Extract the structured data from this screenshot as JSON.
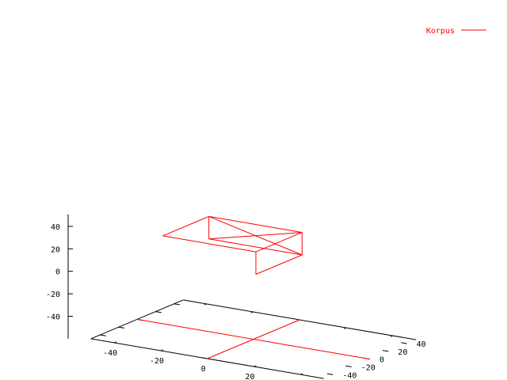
{
  "chart_data": {
    "type": "3d-wireframe",
    "series": [
      {
        "name": "Korpus",
        "color": "#ff0000",
        "box": {
          "x": [
            -35,
            5
          ],
          "y": [
            -10,
            40
          ],
          "z": [
            3,
            23
          ]
        }
      }
    ],
    "xlim": [
      -50,
      50
    ],
    "ylim": [
      -50,
      50
    ],
    "zlim": [
      -60,
      50
    ],
    "x_ticks": [
      "-40",
      "-20",
      "0",
      "20",
      "40"
    ],
    "y_ticks": [
      "-40",
      "-20",
      "0",
      "20",
      "40"
    ],
    "z_ticks": [
      "-40",
      "-20",
      "0",
      "20",
      "40"
    ],
    "grid": false,
    "legend_position": "top-right"
  }
}
